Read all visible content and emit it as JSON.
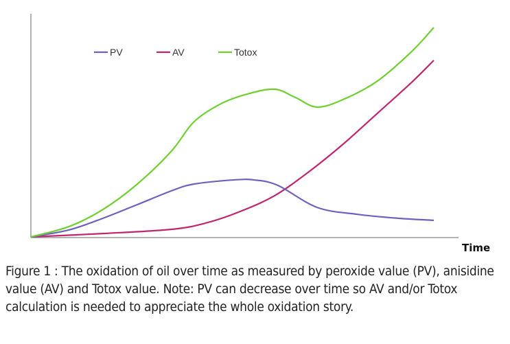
{
  "chart_data": {
    "type": "line",
    "title": "",
    "xlabel": "Time",
    "ylabel": "",
    "xlim": [
      0,
      100
    ],
    "ylim": [
      0,
      100
    ],
    "grid": false,
    "legend": "top-left",
    "series": [
      {
        "name": "PV",
        "color": "#6b62c0",
        "x": [
          0,
          9.4,
          17.9,
          26.4,
          34.9,
          40.4,
          50.3,
          55.4,
          61.3,
          71,
          80.9,
          91.1,
          100
        ],
        "y": [
          0,
          3.3,
          8.9,
          15.4,
          22,
          25.2,
          27.2,
          27.2,
          24.6,
          14.1,
          10.8,
          8.9,
          7.9
        ]
      },
      {
        "name": "AV",
        "color": "#c0256e",
        "x": [
          0,
          17.9,
          34.9,
          43.4,
          51.9,
          60.5,
          69,
          77.5,
          86,
          94.5,
          100
        ],
        "y": [
          0,
          1.6,
          3.6,
          6.6,
          12.1,
          19.7,
          31.1,
          44.3,
          59,
          73.8,
          84.3
        ]
      },
      {
        "name": "Totox",
        "color": "#6fcf2f",
        "x": [
          0,
          9.4,
          17.9,
          26.4,
          34.9,
          40.4,
          46.9,
          53.7,
          60.5,
          65.6,
          71,
          77.5,
          86,
          94.5,
          100
        ],
        "y": [
          0,
          4.9,
          13.1,
          25.2,
          41,
          54.8,
          63.3,
          68.2,
          70.5,
          66.6,
          62,
          65.6,
          74.4,
          88.5,
          100
        ]
      }
    ]
  },
  "caption": "Figure 1 : The oxidation of oil over time as measured by peroxide value (PV), anisidine value (AV) and Totox value. Note: PV can decrease over time so AV and/or Totox calculation is needed to appreciate the whole oxidation story."
}
